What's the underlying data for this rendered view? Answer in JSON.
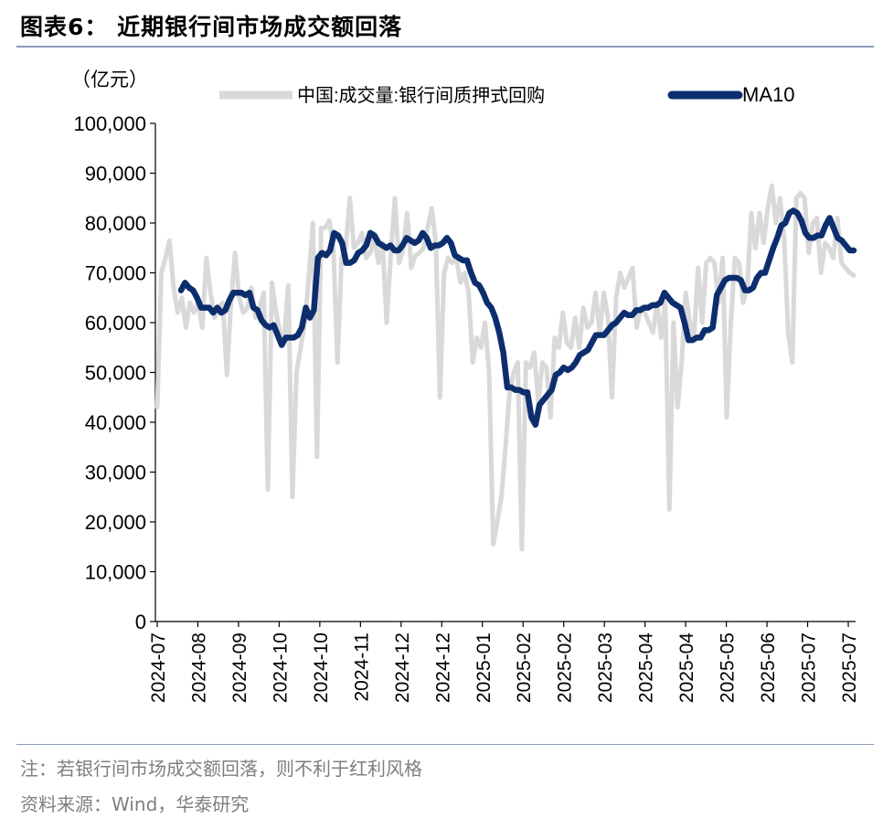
{
  "title": "图表6： 近期银行间市场成交额回落",
  "note": "注：若银行间市场成交额回落，则不利于红利风格",
  "source": "资料来源：Wind，华泰研究",
  "chart_data": {
    "type": "line",
    "unit_label": "（亿元）",
    "ylim": [
      0,
      100000
    ],
    "y_ticks": [
      "100,000",
      "90,000",
      "80,000",
      "70,000",
      "60,000",
      "50,000",
      "40,000",
      "30,000",
      "20,000",
      "10,000",
      "0"
    ],
    "x_ticks": [
      "2024-07",
      "2024-08",
      "2024-09",
      "2024-10",
      "2024-10",
      "2024-11",
      "2024-12",
      "2024-12",
      "2025-01",
      "2025-02",
      "2025-02",
      "2025-03",
      "2025-04",
      "2025-04",
      "2025-05",
      "2025-06",
      "2025-07",
      "2025-07"
    ],
    "grid": false,
    "legend": "top",
    "series": [
      {
        "name": "中国:成交量:银行间质押式回购",
        "color": "#d9d9d9",
        "values": [
          43000,
          70000,
          73000,
          76500,
          67000,
          62000,
          65000,
          59000,
          64000,
          62000,
          64000,
          59000,
          73000,
          66000,
          61000,
          63000,
          64000,
          49500,
          64000,
          74000,
          65000,
          62000,
          63000,
          67000,
          61000,
          63000,
          66000,
          26500,
          68000,
          62000,
          58000,
          57000,
          67500,
          25000,
          50000,
          55000,
          60000,
          69000,
          80000,
          33000,
          79000,
          79000,
          80500,
          75000,
          52000,
          73000,
          75000,
          85000,
          75000,
          76000,
          78000,
          73000,
          74000,
          77000,
          72000,
          76000,
          60000,
          73500,
          85000,
          72000,
          74500,
          82000,
          71000,
          73500,
          74000,
          75000,
          79000,
          83000,
          76000,
          45000,
          70000,
          73000,
          72000,
          73000,
          68000,
          70000,
          66000,
          52000,
          57000,
          55000,
          60000,
          50000,
          15500,
          20000,
          25000,
          35000,
          46000,
          50000,
          52000,
          14500,
          52000,
          51000,
          54000,
          44000,
          52000,
          51000,
          41000,
          57000,
          55000,
          62000,
          56000,
          55000,
          61000,
          55000,
          63000,
          59000,
          60000,
          66000,
          58000,
          66000,
          61000,
          45000,
          65000,
          70000,
          67000,
          69000,
          71000,
          59000,
          63000,
          62000,
          60000,
          58000,
          64000,
          57000,
          64000,
          22500,
          60000,
          43000,
          52000,
          66000,
          60000,
          57000,
          71000,
          60000,
          72000,
          73000,
          72000,
          64000,
          73000,
          41000,
          60000,
          73000,
          72000,
          64000,
          67000,
          82000,
          75000,
          82000,
          76000,
          83000,
          87500,
          80000,
          85000,
          77000,
          58000,
          52000,
          85000,
          86000,
          85000,
          74000,
          80000,
          81000,
          70000,
          76000,
          75000,
          73000,
          81000,
          72000,
          71000,
          70000,
          69500
        ]
      },
      {
        "name": "MA10",
        "color": "#0d2e6e",
        "values": [
          66500,
          68000,
          67000,
          66500,
          65000,
          63000,
          63000,
          63000,
          62000,
          63000,
          62000,
          62500,
          64500,
          66000,
          66000,
          66000,
          65500,
          66000,
          63000,
          62500,
          60500,
          59500,
          59000,
          59500,
          57500,
          55500,
          57000,
          57000,
          57000,
          57500,
          59000,
          63000,
          61000,
          62500,
          73000,
          74000,
          73500,
          74500,
          78000,
          77500,
          76000,
          72000,
          72000,
          72500,
          74000,
          74500,
          75500,
          78000,
          77500,
          76000,
          75500,
          75000,
          75500,
          74500,
          74500,
          75500,
          77000,
          76500,
          76000,
          76500,
          78000,
          77000,
          75000,
          75500,
          75500,
          76000,
          77000,
          76000,
          73500,
          73000,
          72500,
          72500,
          70000,
          68000,
          67500,
          66000,
          64000,
          63000,
          61000,
          58000,
          54000,
          47000,
          47000,
          46500,
          46500,
          46000,
          46000,
          41000,
          39500,
          43500,
          44500,
          45500,
          46500,
          49500,
          50000,
          51000,
          50500,
          51000,
          52000,
          53500,
          54000,
          54500,
          56000,
          57500,
          57500,
          57500,
          58500,
          59500,
          60000,
          61000,
          62000,
          61500,
          61500,
          62500,
          62500,
          63000,
          63000,
          63500,
          63500,
          64000,
          66000,
          65000,
          64000,
          63500,
          63000,
          60000,
          56500,
          56500,
          57000,
          57000,
          58500,
          58500,
          59000,
          65500,
          67000,
          68500,
          69000,
          69000,
          69000,
          68500,
          66500,
          66500,
          67000,
          69000,
          70000,
          70000,
          72500,
          75000,
          77000,
          79500,
          80000,
          82000,
          82500,
          82000,
          80500,
          78000,
          77000,
          77000,
          77500,
          77500,
          79500,
          81000,
          79000,
          77000,
          76500,
          75500,
          74500,
          74500
        ]
      }
    ]
  }
}
